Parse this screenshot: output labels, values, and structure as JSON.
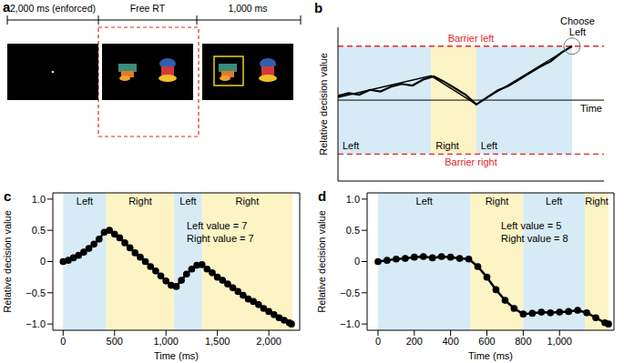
{
  "panel_a": {
    "label": "a",
    "phases": [
      "2,000 ms (enforced)",
      "Free RT",
      "1,000 ms"
    ]
  },
  "chart_data": [
    {
      "panel_label": "b",
      "type": "line",
      "y_label": "Relative decision value",
      "x_label": "Time",
      "tick_labels": false,
      "xlim": [
        0,
        1
      ],
      "ylim": [
        -1.5,
        1.35
      ],
      "xticks": [],
      "yticks": [],
      "barriers": [
        {
          "value": 1,
          "label": "Barrier left"
        },
        {
          "value": -1,
          "label": "Barrier right"
        }
      ],
      "regions": [
        {
          "label": "Left",
          "start": 0,
          "end": 0.35,
          "color": "#d6ebf5"
        },
        {
          "label": "Right",
          "start": 0.35,
          "end": 0.52,
          "color": "#fcf4c5"
        },
        {
          "label": "Left",
          "start": 0.52,
          "end": 0.88,
          "color": "#d6ebf5"
        }
      ],
      "annotation": [
        "Choose",
        "Left"
      ],
      "series": [
        {
          "color": "#000000",
          "marker": "none",
          "line_style": "solid",
          "x": [
            0,
            0.04,
            0.08,
            0.12,
            0.16,
            0.2,
            0.24,
            0.28,
            0.32,
            0.36,
            0.4,
            0.44,
            0.48,
            0.52,
            0.56,
            0.6,
            0.64,
            0.68,
            0.72,
            0.76,
            0.8,
            0.84,
            0.88
          ],
          "values": [
            0.08,
            0.13,
            0.1,
            0.19,
            0.16,
            0.25,
            0.3,
            0.27,
            0.38,
            0.44,
            0.34,
            0.22,
            0.1,
            -0.08,
            0.05,
            0.18,
            0.26,
            0.38,
            0.5,
            0.62,
            0.72,
            0.88,
            1.0
          ]
        },
        {
          "color": "#000000",
          "marker": "none",
          "line_style": "solid",
          "x": [
            0,
            0.35,
            0.52,
            0.88
          ],
          "values": [
            0.05,
            0.45,
            -0.08,
            1.0
          ]
        }
      ]
    },
    {
      "panel_label": "c",
      "type": "line",
      "y_label": "Relative decision value",
      "x_label": "Time (ms)",
      "xlim": [
        -100,
        2300
      ],
      "ylim": [
        -1.1,
        1.1
      ],
      "xticks": [
        0,
        500,
        {
          "value": 1000,
          "label": "1,000"
        },
        {
          "value": 1500,
          "label": "1,500"
        },
        {
          "value": 2000,
          "label": "2,000"
        }
      ],
      "yticks": [
        {
          "value": -1,
          "label": "−1.0"
        },
        {
          "value": -0.5,
          "label": "−0.5"
        },
        0,
        0.5,
        {
          "value": 1,
          "label": "1.0"
        }
      ],
      "annotations": [
        "Left value = 7",
        "Right value = 7"
      ],
      "regions": [
        {
          "label": "Left",
          "start": 0,
          "end": 420,
          "color": "#d6ebf5"
        },
        {
          "label": "Right",
          "start": 420,
          "end": 1080,
          "color": "#fcf4c5"
        },
        {
          "label": "Left",
          "start": 1080,
          "end": 1350,
          "color": "#d6ebf5"
        },
        {
          "label": "Right",
          "start": 1350,
          "end": 2230,
          "color": "#fcf4c5"
        }
      ],
      "color": "#000000",
      "marker": "circle",
      "x": [
        0,
        50,
        100,
        150,
        200,
        250,
        300,
        350,
        400,
        450,
        500,
        550,
        600,
        650,
        700,
        750,
        800,
        850,
        900,
        950,
        1000,
        1050,
        1100,
        1150,
        1200,
        1250,
        1300,
        1350,
        1400,
        1450,
        1500,
        1550,
        1600,
        1650,
        1700,
        1750,
        1800,
        1850,
        1900,
        1950,
        2000,
        2050,
        2100,
        2150,
        2200,
        2220
      ],
      "values": [
        0,
        0.02,
        0.06,
        0.1,
        0.15,
        0.21,
        0.28,
        0.36,
        0.47,
        0.5,
        0.44,
        0.38,
        0.3,
        0.22,
        0.14,
        0.07,
        0,
        -0.08,
        -0.15,
        -0.23,
        -0.31,
        -0.38,
        -0.4,
        -0.3,
        -0.2,
        -0.12,
        -0.06,
        -0.05,
        -0.12,
        -0.18,
        -0.25,
        -0.3,
        -0.36,
        -0.42,
        -0.48,
        -0.54,
        -0.6,
        -0.64,
        -0.69,
        -0.75,
        -0.8,
        -0.85,
        -0.9,
        -0.94,
        -0.98,
        -1.0
      ]
    },
    {
      "panel_label": "d",
      "type": "line",
      "y_label": "Relative decision value",
      "x_label": "Time (ms)",
      "xlim": [
        -60,
        1300
      ],
      "ylim": [
        -1.1,
        1.1
      ],
      "xticks": [
        0,
        200,
        400,
        600,
        800,
        {
          "value": 1000,
          "label": "1,000"
        }
      ],
      "yticks": [
        {
          "value": -1,
          "label": "−1.0"
        },
        {
          "value": -0.5,
          "label": "−0.5"
        },
        0,
        0.5,
        {
          "value": 1,
          "label": "1.0"
        }
      ],
      "annotations": [
        "Left value = 5",
        "Right value = 8"
      ],
      "regions": [
        {
          "label": "Left",
          "start": 0,
          "end": 510,
          "color": "#d6ebf5"
        },
        {
          "label": "Right",
          "start": 510,
          "end": 800,
          "color": "#fcf4c5"
        },
        {
          "label": "Left",
          "start": 800,
          "end": 1140,
          "color": "#d6ebf5"
        },
        {
          "label": "Right",
          "start": 1140,
          "end": 1270,
          "color": "#fcf4c5"
        }
      ],
      "color": "#000000",
      "marker": "circle",
      "x": [
        0,
        50,
        100,
        150,
        200,
        250,
        300,
        350,
        400,
        450,
        500,
        550,
        600,
        650,
        700,
        750,
        800,
        850,
        900,
        950,
        1000,
        1050,
        1100,
        1150,
        1200,
        1250,
        1270
      ],
      "values": [
        0,
        0.02,
        0.04,
        0.05,
        0.07,
        0.08,
        0.06,
        0.08,
        0.07,
        0.05,
        0.04,
        -0.08,
        -0.25,
        -0.45,
        -0.62,
        -0.75,
        -0.84,
        -0.83,
        -0.81,
        -0.82,
        -0.81,
        -0.8,
        -0.78,
        -0.82,
        -0.9,
        -0.98,
        -1.0
      ]
    }
  ]
}
